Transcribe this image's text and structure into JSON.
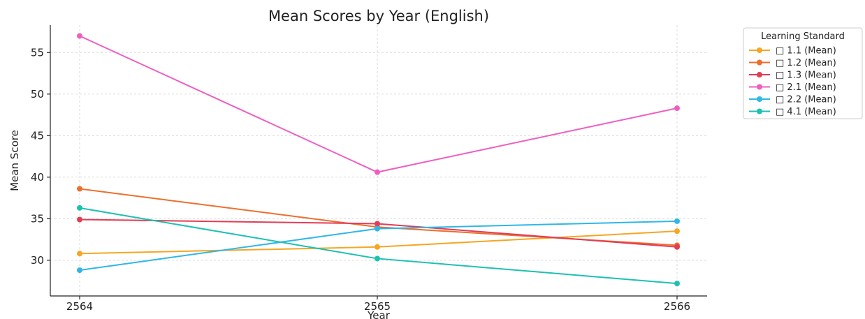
{
  "chart_data": {
    "type": "line",
    "title": "Mean Scores by Year (English)",
    "xlabel": "Year",
    "ylabel": "Mean Score",
    "categories": [
      "2564",
      "2565",
      "2566"
    ],
    "y_ticks": [
      30,
      35,
      40,
      45,
      50,
      55
    ],
    "ylim": [
      25.7,
      58.3
    ],
    "grid": true,
    "legend_title": "Learning Standard",
    "legend_position": "outside-top-right",
    "series": [
      {
        "name": "□ 1.1 (Mean)",
        "color": "#f5a623",
        "values": [
          30.8,
          31.6,
          33.5
        ]
      },
      {
        "name": "□ 1.2 (Mean)",
        "color": "#ec6f2d",
        "values": [
          38.6,
          34.0,
          31.8
        ]
      },
      {
        "name": "□ 1.3 (Mean)",
        "color": "#e23d55",
        "values": [
          34.9,
          34.4,
          31.6
        ]
      },
      {
        "name": "□ 2.1 (Mean)",
        "color": "#ee5ec1",
        "values": [
          57.0,
          40.6,
          48.3
        ]
      },
      {
        "name": "□ 2.2 (Mean)",
        "color": "#2fb7e6",
        "values": [
          28.8,
          33.8,
          34.7
        ]
      },
      {
        "name": "□ 4.1 (Mean)",
        "color": "#1dc1b2",
        "values": [
          36.3,
          30.2,
          27.2
        ]
      }
    ]
  }
}
